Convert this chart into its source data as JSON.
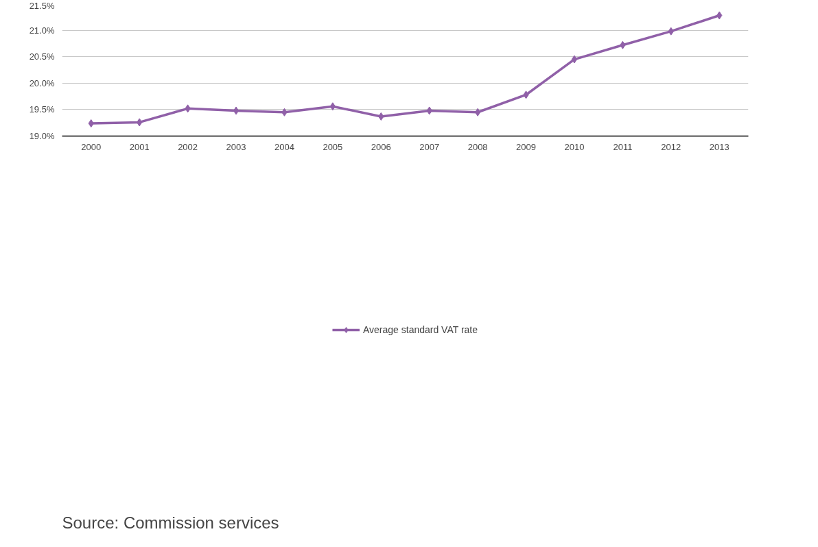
{
  "chart_data": {
    "type": "line",
    "categories": [
      "2000",
      "2001",
      "2002",
      "2003",
      "2004",
      "2005",
      "2006",
      "2007",
      "2008",
      "2009",
      "2010",
      "2011",
      "2012",
      "2013"
    ],
    "series": [
      {
        "name": "Average standard VAT rate",
        "color": "#9060a8",
        "values": [
          19.24,
          19.26,
          19.52,
          19.48,
          19.45,
          19.56,
          19.37,
          19.48,
          19.45,
          19.78,
          20.45,
          20.72,
          20.98,
          21.28
        ]
      }
    ],
    "ylim": [
      19.0,
      21.5
    ],
    "yticks": [
      {
        "value": 19.0,
        "label": "19.0%"
      },
      {
        "value": 19.5,
        "label": "19.5%"
      },
      {
        "value": 20.0,
        "label": "20.0%"
      },
      {
        "value": 20.5,
        "label": "20.5%"
      },
      {
        "value": 21.0,
        "label": "21.0%"
      },
      {
        "value": 21.5,
        "label": "21.5%"
      }
    ],
    "grid": "y",
    "legend": "bottom",
    "marker": "diamond",
    "line_style": "solid",
    "annotations": [
      "Source:   Commission services"
    ]
  }
}
